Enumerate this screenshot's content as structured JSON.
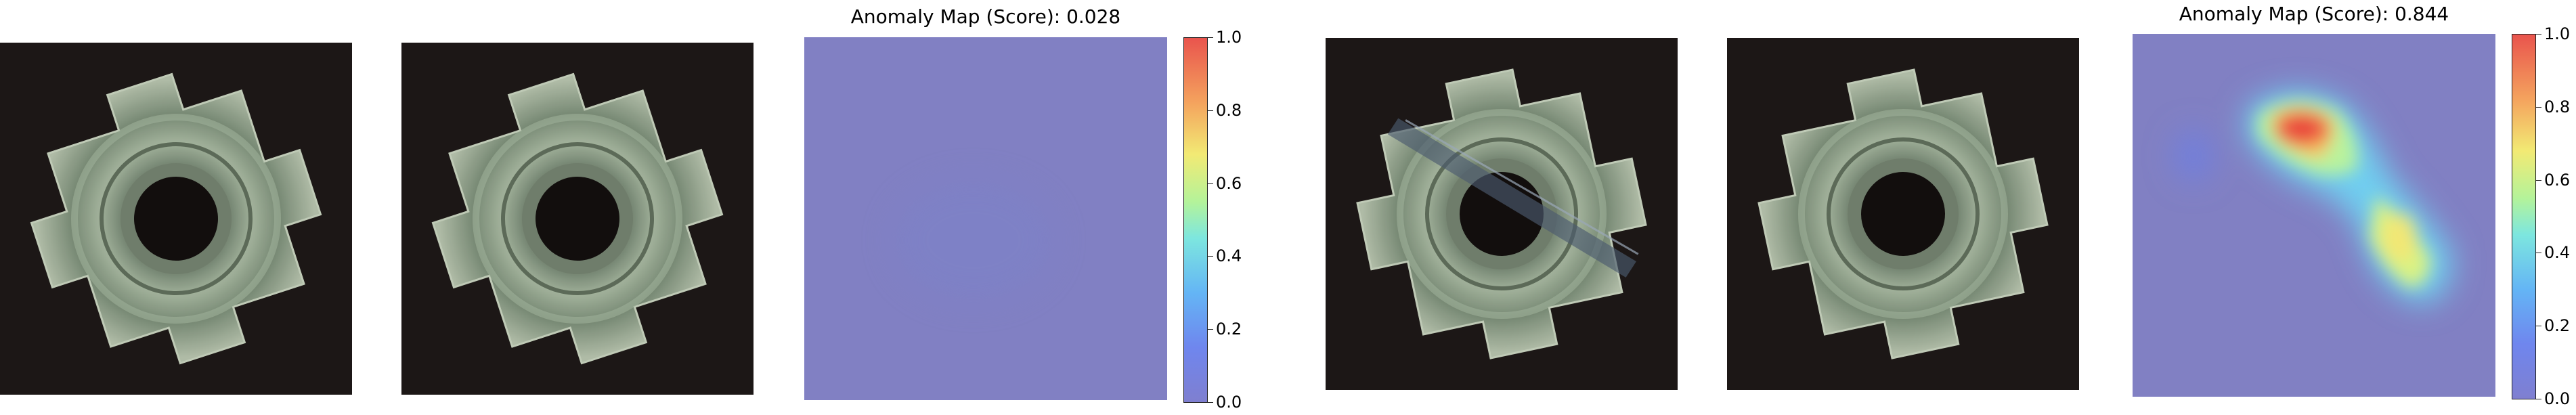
{
  "figures": [
    {
      "title": "Anomaly Map (Score): 0.028",
      "score": 0.028,
      "colorbar_ticks": [
        "0.0",
        "0.2",
        "0.4",
        "0.6",
        "0.8",
        "1.0"
      ]
    },
    {
      "title": "Anomaly Map (Score): 0.844",
      "score": 0.844,
      "colorbar_ticks": [
        "0.0",
        "0.2",
        "0.4",
        "0.6",
        "0.8",
        "1.0"
      ]
    }
  ],
  "colormap": "jet",
  "colors": {
    "background_dark": "#1c1716",
    "map_base": "#8180c3",
    "hot": "#e9423a"
  }
}
